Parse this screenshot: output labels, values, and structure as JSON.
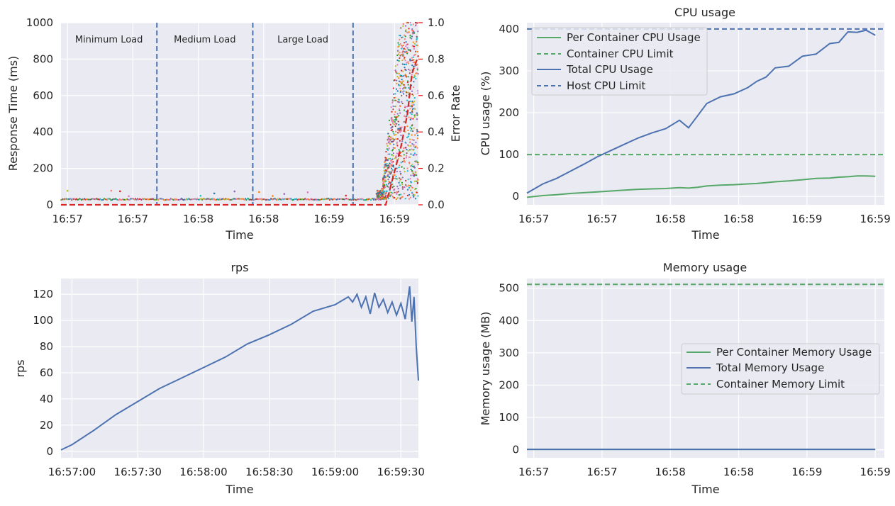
{
  "theme": {
    "panel_bg": "#eaeaf2",
    "grid": "#ffffff",
    "blue": "#4c72b0",
    "green": "#55a868",
    "red": "#d62728",
    "error_axis": "#ff0000",
    "text": "#262626",
    "scatter_colors": [
      "#1f77b4",
      "#ff7f0e",
      "#2ca02c",
      "#d62728",
      "#9467bd",
      "#8c564b",
      "#e377c2",
      "#bcbd22",
      "#17becf",
      "#fa8072"
    ]
  },
  "chart_data": [
    {
      "id": "response",
      "type": "scatter",
      "title": "",
      "xlabel": "Time",
      "ylabel": "Response Time (ms)",
      "y2label": "Error Rate",
      "x_domain_s": [
        -3,
        161
      ],
      "ylim": [
        0,
        1000
      ],
      "y2lim": [
        0,
        1.0
      ],
      "x_ticks": [
        {
          "t": 0,
          "label": "16:57"
        },
        {
          "t": 30,
          "label": "16:57"
        },
        {
          "t": 60,
          "label": "16:58"
        },
        {
          "t": 90,
          "label": "16:58"
        },
        {
          "t": 120,
          "label": "16:59"
        },
        {
          "t": 150,
          "label": "16:59"
        }
      ],
      "y_ticks": [
        0,
        200,
        400,
        600,
        800,
        1000
      ],
      "y2_ticks": [
        "0.0",
        "0.2",
        "0.4",
        "0.6",
        "0.8",
        "1.0"
      ],
      "phases": [
        {
          "label": "Minimum Load",
          "end_t": 41
        },
        {
          "label": "Medium Load",
          "end_t": 85
        },
        {
          "label": "Large Load",
          "end_t": 131
        }
      ],
      "response_profile": {
        "base_ms": 30,
        "ramp_start_t": 144,
        "ramp_end_t": 153
      },
      "error_rate": {
        "x_t": [
          -3,
          146,
          150,
          153,
          156,
          158,
          161
        ],
        "y": [
          0.0,
          0.0,
          0.18,
          0.32,
          0.5,
          0.72,
          0.82
        ]
      }
    },
    {
      "id": "cpu",
      "type": "line",
      "title": "CPU usage",
      "xlabel": "Time",
      "ylabel": "CPU usage (%)",
      "x_domain_s": [
        -3,
        154
      ],
      "ylim": [
        -20,
        415
      ],
      "x_ticks": [
        {
          "t": 0,
          "label": "16:57"
        },
        {
          "t": 30,
          "label": "16:57"
        },
        {
          "t": 60,
          "label": "16:58"
        },
        {
          "t": 90,
          "label": "16:58"
        },
        {
          "t": 120,
          "label": "16:59"
        },
        {
          "t": 150,
          "label": "16:59"
        }
      ],
      "y_ticks": [
        0,
        100,
        200,
        300,
        400
      ],
      "legend": [
        "Per Container CPU Usage",
        "Container CPU Limit",
        "Total CPU Usage",
        "Host CPU Limit"
      ],
      "legend_position": "upper-left",
      "x_t": [
        -3,
        4,
        10,
        16,
        22,
        28,
        34,
        40,
        46,
        52,
        58,
        64,
        68,
        72,
        76,
        82,
        88,
        94,
        98,
        102,
        106,
        112,
        118,
        124,
        130,
        134,
        138,
        142,
        146,
        150
      ],
      "total_cpu": [
        8,
        30,
        43,
        60,
        77,
        95,
        110,
        125,
        140,
        152,
        162,
        182,
        164,
        193,
        222,
        238,
        245,
        260,
        275,
        285,
        307,
        311,
        335,
        340,
        365,
        368,
        393,
        392,
        397,
        385
      ],
      "per_container_cpu": [
        -2,
        2,
        4,
        7,
        9,
        11,
        13,
        15,
        17,
        18,
        19,
        21,
        20,
        22,
        25,
        27,
        28,
        30,
        31,
        33,
        35,
        37,
        40,
        43,
        44,
        46,
        47,
        49,
        49,
        48
      ],
      "container_cpu_limit": 100,
      "host_cpu_limit": 400
    },
    {
      "id": "rps",
      "type": "line",
      "title": "rps",
      "xlabel": "Time",
      "ylabel": "rps",
      "x_domain_s": [
        -5,
        158
      ],
      "ylim": [
        -5,
        132
      ],
      "x_ticks": [
        {
          "t": 0,
          "label": "16:57:00"
        },
        {
          "t": 30,
          "label": "16:57:30"
        },
        {
          "t": 60,
          "label": "16:58:00"
        },
        {
          "t": 90,
          "label": "16:58:30"
        },
        {
          "t": 120,
          "label": "16:59:00"
        },
        {
          "t": 150,
          "label": "16:59:30"
        }
      ],
      "y_ticks": [
        0,
        20,
        40,
        60,
        80,
        100,
        120
      ],
      "series": [
        {
          "x_t": [
            -5,
            0,
            10,
            20,
            30,
            40,
            50,
            60,
            70,
            80,
            90,
            100,
            110,
            120,
            126,
            128,
            130,
            132,
            134,
            136,
            138,
            140,
            142,
            144,
            146,
            148,
            150,
            152,
            154,
            155,
            156,
            157,
            158
          ],
          "y": [
            1,
            5,
            16,
            28,
            38,
            48,
            56,
            64,
            72,
            82,
            89,
            97,
            107,
            112,
            118,
            114,
            120,
            110,
            118,
            105,
            121,
            110,
            116,
            106,
            114,
            104,
            113,
            101,
            126,
            99,
            118,
            80,
            54
          ]
        }
      ]
    },
    {
      "id": "memory",
      "type": "line",
      "title": "Memory usage",
      "xlabel": "Time",
      "ylabel": "Memory usage (MB)",
      "x_domain_s": [
        -3,
        154
      ],
      "ylim": [
        -25,
        530
      ],
      "x_ticks": [
        {
          "t": 0,
          "label": "16:57"
        },
        {
          "t": 30,
          "label": "16:57"
        },
        {
          "t": 60,
          "label": "16:58"
        },
        {
          "t": 90,
          "label": "16:58"
        },
        {
          "t": 120,
          "label": "16:59"
        },
        {
          "t": 150,
          "label": "16:59"
        }
      ],
      "y_ticks": [
        0,
        100,
        200,
        300,
        400,
        500
      ],
      "legend": [
        "Per Container Memory Usage",
        "Total Memory Usage",
        "Container Memory Limit"
      ],
      "legend_position": "center-right",
      "x_t": [
        -3,
        150
      ],
      "total_memory": [
        1,
        1
      ],
      "per_container_memory": [
        1,
        1
      ],
      "container_memory_limit": 512
    }
  ]
}
